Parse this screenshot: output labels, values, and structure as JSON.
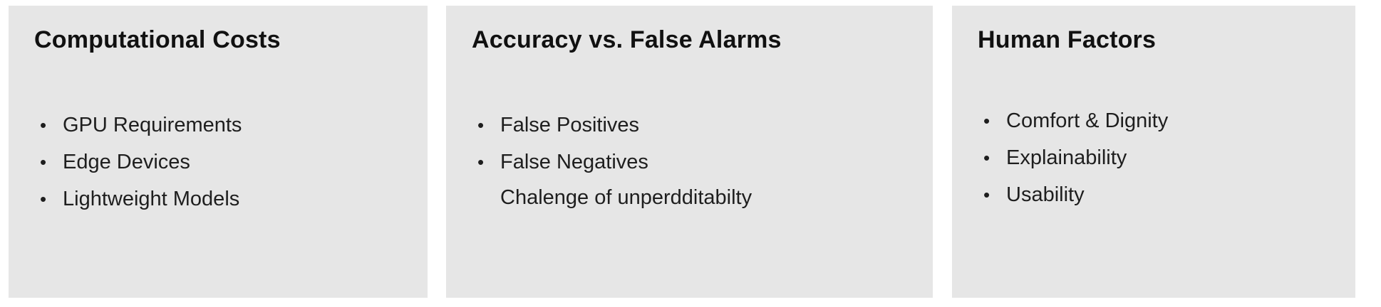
{
  "cards": [
    {
      "title": "Computational Costs",
      "items": [
        "GPU Requirements",
        "Edge Devices",
        "Lightweight Models"
      ]
    },
    {
      "title": "Accuracy vs. False Alarms",
      "items": [
        "False Positives",
        "False Negatives"
      ],
      "note": "Chalenge of unperdditabilty"
    },
    {
      "title": "Human Factors",
      "items": [
        "Comfort & Dignity",
        "Explainability",
        "Usability"
      ]
    }
  ],
  "bullet_glyph": "•",
  "colors": {
    "card_background": "#e6e6e6",
    "page_background": "#ffffff",
    "text": "#1e1e1e"
  }
}
